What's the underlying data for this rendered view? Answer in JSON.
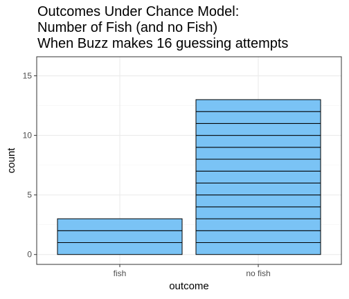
{
  "chart_data": {
    "type": "bar",
    "title_lines": [
      "Outcomes Under Chance Model:",
      "Number of Fish (and no Fish)",
      "When Buzz makes 16 guessing attempts"
    ],
    "categories": [
      "fish",
      "no fish"
    ],
    "values": [
      3,
      13
    ],
    "stacked_unit": 1,
    "xlabel": "outcome",
    "ylabel": "count",
    "ylim": [
      0,
      16.6
    ],
    "yticks": [
      0,
      5,
      10,
      15
    ],
    "grid": true,
    "legend": "none",
    "colors": {
      "bar_fill": "#7ac3f5",
      "bar_stroke": "#000000",
      "panel_border": "#333333",
      "grid_major": "#ebebeb",
      "grid_minor": "#f4f4f4",
      "tick": "#333333"
    }
  }
}
